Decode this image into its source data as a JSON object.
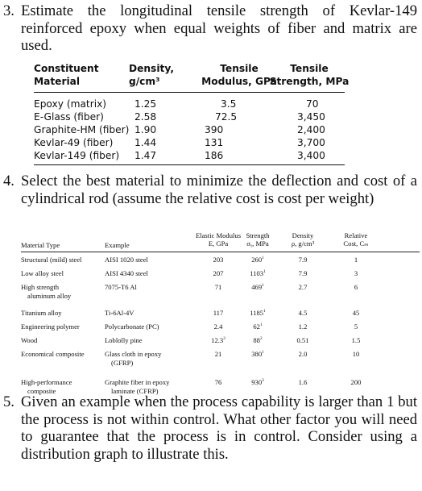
{
  "q3": {
    "number": "3.",
    "text": "Estimate the longitudinal tensile strength of Kevlar-149 reinforced epoxy when equal weights of fiber and matrix are used."
  },
  "table1": {
    "headers": [
      [
        "Constituent",
        "Material"
      ],
      [
        "Density,",
        "g/cm³"
      ],
      [
        "Tensile",
        "Modulus, GPa"
      ],
      [
        "Tensile",
        "Strength, MPa"
      ]
    ],
    "rows": [
      [
        "Epoxy (matrix)",
        "1.25",
        "3.5",
        "70"
      ],
      [
        "E-Glass (fiber)",
        "2.58",
        "72.5",
        "3,450"
      ],
      [
        "Graphite-HM (fiber)",
        "1.90",
        "390",
        "2,400"
      ],
      [
        "Kevlar-49 (fiber)",
        "1.44",
        "131",
        "3,700"
      ],
      [
        "Kevlar-149 (fiber)",
        "1.47",
        "186",
        "3,400"
      ]
    ]
  },
  "q4": {
    "number": "4.",
    "text": "Select the best material to minimize the deflection and cost of a cylindrical rod (assume the relative cost is cost per weight)"
  },
  "table2": {
    "headers": {
      "material": "Material Type",
      "example": "Example",
      "modulus": [
        "Elastic Modulus",
        "E, GPa"
      ],
      "strength": [
        "Strength",
        "σᵧ, MPa"
      ],
      "density": [
        "Density",
        "ρ, g/cm³"
      ],
      "cost": [
        "Relative",
        "Cost, Cₘ"
      ]
    },
    "rows": [
      {
        "material": [
          "Structural (mild) steel"
        ],
        "example": [
          "AISI 1020 steel"
        ],
        "modulus": "203",
        "strength": "260",
        "strength_note": "1",
        "density": "7.9",
        "cost": "1"
      },
      {
        "material": [
          "Low alloy steel"
        ],
        "example": [
          "AISI 4340 steel"
        ],
        "modulus": "207",
        "strength": "1103",
        "strength_note": "1",
        "density": "7.9",
        "cost": "3"
      },
      {
        "material": [
          "High strength",
          "aluminum alloy"
        ],
        "example": [
          "7075-T6 Al"
        ],
        "modulus": "71",
        "strength": "469",
        "strength_note": "1",
        "density": "2.7",
        "cost": "6"
      },
      {
        "material": [
          "Titanium alloy"
        ],
        "example": [
          "Ti-6Al-4V"
        ],
        "modulus": "117",
        "strength": "1185",
        "strength_note": "1",
        "density": "4.5",
        "cost": "45"
      },
      {
        "material": [
          "Engineering polymer"
        ],
        "example": [
          "Polycarbonate (PC)"
        ],
        "modulus": "2.4",
        "strength": "62",
        "strength_note": "1",
        "density": "1.2",
        "cost": "5"
      },
      {
        "material": [
          "Wood"
        ],
        "example": [
          "Loblolly pine"
        ],
        "modulus": "12.3",
        "modulus_note": "2",
        "strength": "88",
        "strength_note": "2",
        "density": "0.51",
        "cost": "1.5"
      },
      {
        "material": [
          "Economical composite"
        ],
        "example": [
          "Glass cloth in epoxy",
          "(GFRP)"
        ],
        "modulus": "21",
        "strength": "380",
        "strength_note": "1",
        "density": "2.0",
        "cost": "10"
      },
      {
        "material": [
          "High-performance",
          "composite"
        ],
        "example": [
          "Graphite fiber in epoxy",
          "laminate (CFRP)"
        ],
        "modulus": "76",
        "strength": "930",
        "strength_note": "3",
        "density": "1.6",
        "cost": "200"
      }
    ]
  },
  "q5": {
    "number": "5.",
    "text": "Given an example when the process capability is larger than 1 but the process is not within control. What other factor you will need to guarantee that the process is in control. Consider using a distribution graph to illustrate this."
  }
}
